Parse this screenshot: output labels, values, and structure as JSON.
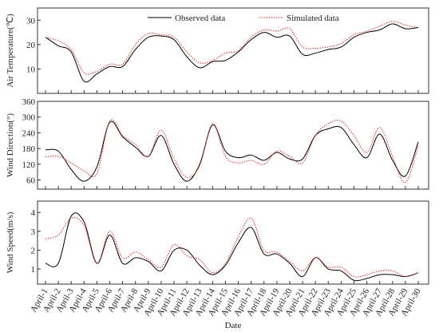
{
  "chart_data": [
    {
      "type": "line",
      "ylabel": "Air Temperature(℃)",
      "ylim": [
        0,
        35
      ],
      "yticks": [
        10,
        20,
        30
      ],
      "legend": "top",
      "series": [
        {
          "name": "Observed data",
          "color": "#000000",
          "style": "solid",
          "values": [
            23,
            19.5,
            17,
            5,
            8,
            11,
            11,
            18,
            23,
            23.5,
            22,
            15,
            10.5,
            13,
            13.5,
            17,
            22,
            25,
            23,
            23.5,
            16,
            16.5,
            18,
            19,
            23,
            25,
            26,
            28.5,
            26.5,
            27
          ]
        },
        {
          "name": "Simulated data",
          "color": "#e8262a",
          "style": "dotted",
          "values": [
            23,
            21.5,
            18,
            8.5,
            9,
            12,
            12,
            20,
            24.5,
            24,
            23,
            17,
            12.5,
            13.5,
            16.5,
            17.5,
            23,
            26,
            25.5,
            26.5,
            19,
            18.5,
            19,
            20.5,
            24,
            25.5,
            27.5,
            29.5,
            28,
            27
          ]
        }
      ]
    },
    {
      "type": "line",
      "ylabel": "Wind Direction(°)",
      "ylim": [
        25,
        360
      ],
      "yticks": [
        60,
        120,
        180,
        240,
        300,
        360
      ],
      "series": [
        {
          "name": "Observed data",
          "color": "#000000",
          "style": "solid",
          "values": [
            175,
            170,
            100,
            55,
            110,
            280,
            225,
            185,
            150,
            230,
            120,
            55,
            120,
            270,
            170,
            145,
            155,
            135,
            165,
            140,
            140,
            230,
            255,
            260,
            195,
            145,
            235,
            135,
            75,
            205
          ]
        },
        {
          "name": "Simulated data",
          "color": "#e8262a",
          "style": "dotted",
          "values": [
            148,
            150,
            125,
            95,
            85,
            285,
            230,
            195,
            150,
            250,
            140,
            70,
            115,
            275,
            150,
            125,
            135,
            120,
            170,
            150,
            125,
            230,
            275,
            285,
            230,
            165,
            260,
            150,
            50,
            190
          ]
        }
      ]
    },
    {
      "type": "line",
      "ylabel": "Wind Speed(m/s)",
      "xlabel": "Date",
      "ylim": [
        0.2,
        4.6
      ],
      "yticks": [
        1,
        2,
        3,
        4
      ],
      "categories": [
        "April-1",
        "April-2",
        "April-3",
        "April-4",
        "April-5",
        "April-6",
        "April-7",
        "April-8",
        "April-9",
        "April-10",
        "April-11",
        "April-12",
        "April-13",
        "April-14",
        "April-15",
        "April-16",
        "April-17",
        "April-18",
        "April-19",
        "April-20",
        "April-21",
        "April-22",
        "April-23",
        "April-24",
        "April-25",
        "April-26",
        "April-27",
        "April-28",
        "April-29",
        "April-30"
      ],
      "series": [
        {
          "name": "Observed data",
          "color": "#000000",
          "style": "solid",
          "values": [
            1.3,
            1.3,
            3.8,
            3.5,
            1.3,
            2.8,
            1.3,
            1.6,
            1.4,
            0.9,
            2.0,
            2.0,
            1.2,
            0.7,
            1.2,
            2.4,
            3.2,
            1.8,
            1.8,
            1.3,
            0.6,
            1.6,
            1.0,
            0.9,
            0.4,
            0.5,
            0.7,
            0.7,
            0.6,
            0.8
          ]
        },
        {
          "name": "Simulated data",
          "color": "#e8262a",
          "style": "dotted",
          "values": [
            2.6,
            2.8,
            3.7,
            3.3,
            1.3,
            3.0,
            1.6,
            1.9,
            1.5,
            1.1,
            2.3,
            1.7,
            1.5,
            0.8,
            1.3,
            2.7,
            3.7,
            2.0,
            1.9,
            1.4,
            0.9,
            1.6,
            1.1,
            1.1,
            0.6,
            0.7,
            0.9,
            0.9,
            0.6,
            0.8
          ]
        }
      ]
    }
  ]
}
